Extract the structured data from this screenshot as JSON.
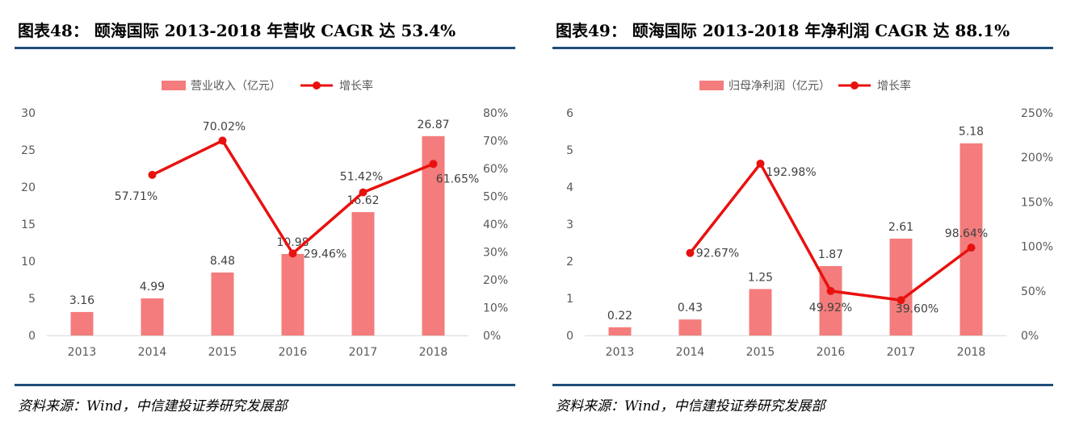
{
  "figures": [
    {
      "title": "图表48：  颐海国际 2013-2018 年营收 CAGR 达 53.4%",
      "source": "资料来源：Wind，中信建投证券研究发展部",
      "chart_data": {
        "type": "bar",
        "categories": [
          "2013",
          "2014",
          "2015",
          "2016",
          "2017",
          "2018"
        ],
        "series": [
          {
            "name": "营业收入（亿元）",
            "type": "bar",
            "axis": "left",
            "values": [
              3.16,
              4.99,
              8.48,
              10.98,
              16.62,
              26.87
            ],
            "labels": [
              "3.16",
              "4.99",
              "8.48",
              "10.98",
              "16.62",
              "26.87"
            ],
            "color": "#f47c7c"
          },
          {
            "name": "增长率",
            "type": "line",
            "axis": "right",
            "values": [
              null,
              57.71,
              70.02,
              29.46,
              51.42,
              61.65
            ],
            "labels": [
              "",
              "57.71%",
              "70.02%",
              "29.46%",
              "51.42%",
              "61.65%"
            ],
            "color": "#e8110f"
          }
        ],
        "left_axis": {
          "min": 0,
          "max": 30,
          "ticks": [
            "0",
            "5",
            "10",
            "15",
            "20",
            "25",
            "30"
          ]
        },
        "right_axis": {
          "min": 0,
          "max": 80,
          "ticks": [
            "0%",
            "10%",
            "20%",
            "30%",
            "40%",
            "50%",
            "60%",
            "70%",
            "80%"
          ]
        },
        "legend": "top-center"
      }
    },
    {
      "title": "图表49：  颐海国际 2013-2018 年净利润 CAGR 达 88.1%",
      "source": "资料来源：Wind，中信建投证券研究发展部",
      "chart_data": {
        "type": "bar",
        "categories": [
          "2013",
          "2014",
          "2015",
          "2016",
          "2017",
          "2018"
        ],
        "series": [
          {
            "name": "归母净利润（亿元）",
            "type": "bar",
            "axis": "left",
            "values": [
              0.22,
              0.43,
              1.25,
              1.87,
              2.61,
              5.18
            ],
            "labels": [
              "0.22",
              "0.43",
              "1.25",
              "1.87",
              "2.61",
              "5.18"
            ],
            "color": "#f47c7c"
          },
          {
            "name": "增长率",
            "type": "line",
            "axis": "right",
            "values": [
              null,
              92.67,
              192.98,
              49.92,
              39.6,
              98.64
            ],
            "labels": [
              "",
              "92.67%",
              "192.98%",
              "49.92%",
              "39.60%",
              "98.64%"
            ],
            "color": "#e8110f"
          }
        ],
        "left_axis": {
          "min": 0,
          "max": 6,
          "ticks": [
            "0",
            "1",
            "2",
            "3",
            "4",
            "5",
            "6"
          ]
        },
        "right_axis": {
          "min": 0,
          "max": 250,
          "ticks": [
            "0%",
            "50%",
            "100%",
            "150%",
            "200%",
            "250%"
          ]
        },
        "legend": "top-center"
      }
    }
  ]
}
